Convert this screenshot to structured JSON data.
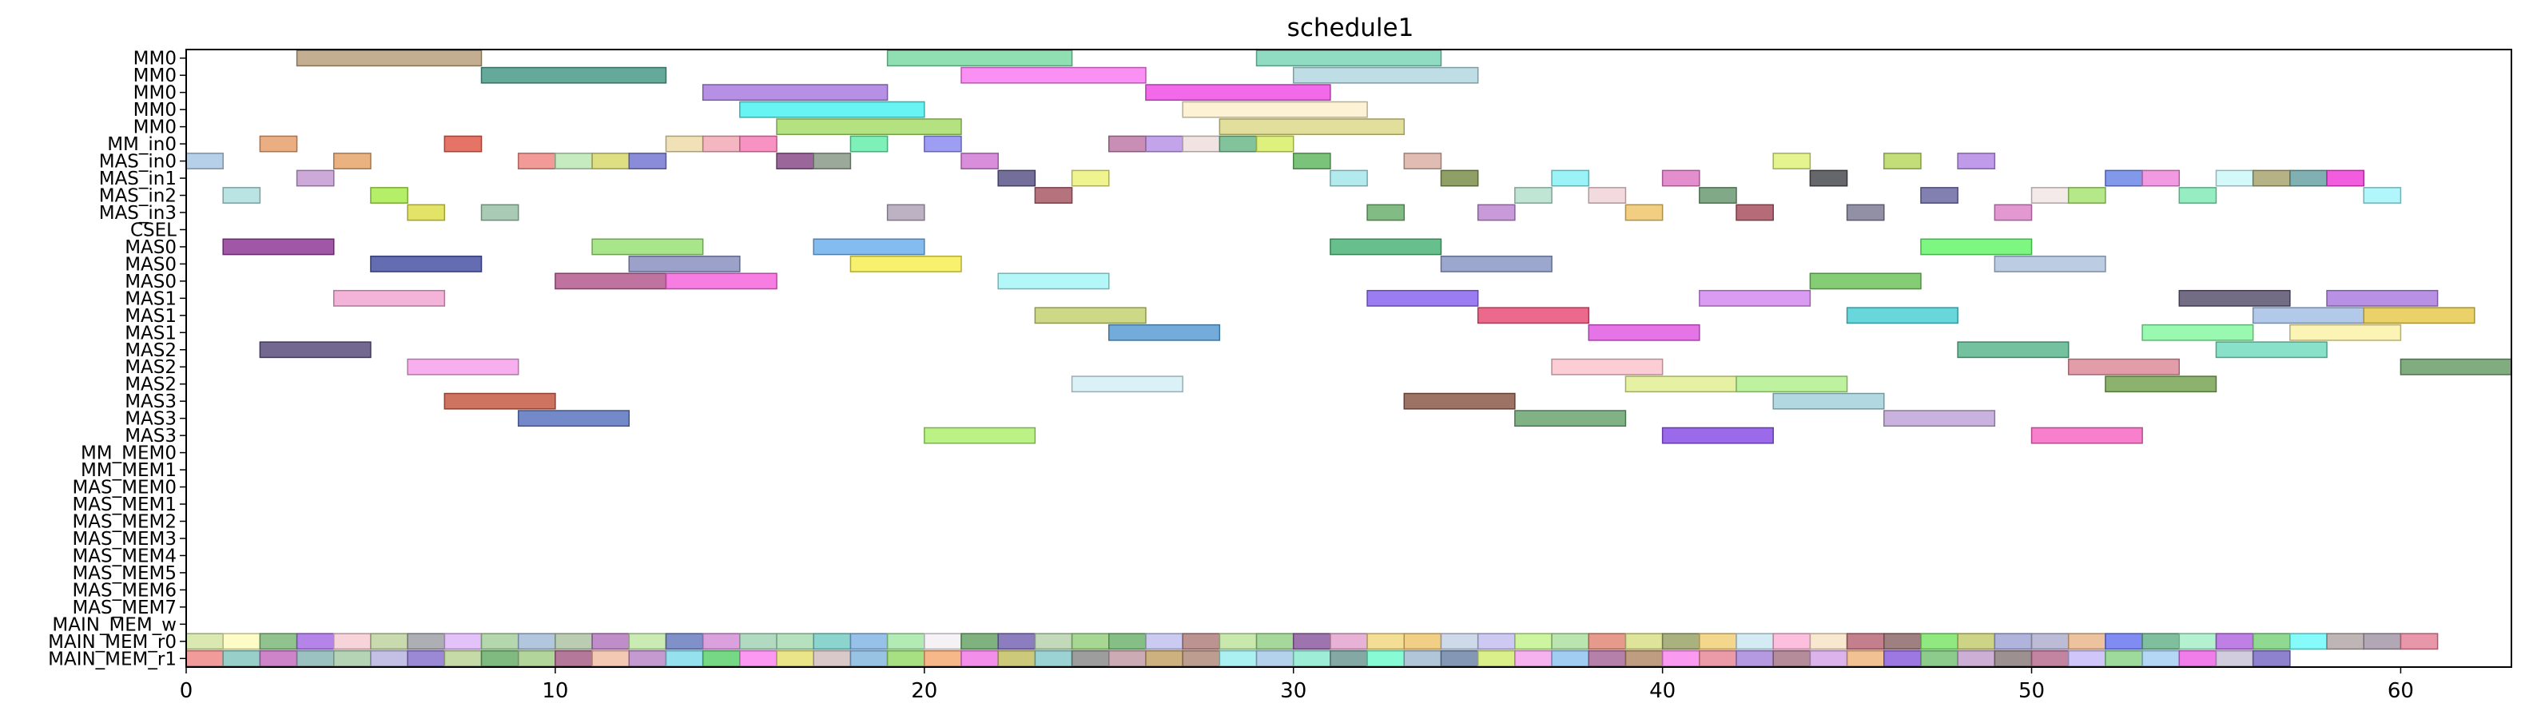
{
  "chart_data": {
    "type": "gantt",
    "title": "schedule1",
    "xlabel": "",
    "ylabel": "",
    "xlim": [
      0,
      63
    ],
    "xticks": [
      0,
      10,
      20,
      30,
      40,
      50,
      60
    ],
    "grid": false,
    "legend": "none",
    "rows": [
      "MM0",
      "MM0",
      "MM0",
      "MM0",
      "MM0",
      "MM_in0",
      "MAS_in0",
      "MAS_in1",
      "MAS_in2",
      "MAS_in3",
      "CSEL",
      "MAS0",
      "MAS0",
      "MAS0",
      "MAS1",
      "MAS1",
      "MAS1",
      "MAS2",
      "MAS2",
      "MAS2",
      "MAS3",
      "MAS3",
      "MAS3",
      "MM_MEM0",
      "MM_MEM1",
      "MAS_MEM0",
      "MAS_MEM1",
      "MAS_MEM2",
      "MAS_MEM3",
      "MAS_MEM4",
      "MAS_MEM5",
      "MAS_MEM6",
      "MAS_MEM7",
      "MAIN_MEM_w",
      "MAIN_MEM_r0",
      "MAIN_MEM_r1"
    ],
    "segments": [
      {
        "row": 0,
        "start": 3,
        "end": 8,
        "color": "#b8a07e"
      },
      {
        "row": 0,
        "start": 19,
        "end": 24,
        "color": "#7dd9a6"
      },
      {
        "row": 0,
        "start": 29,
        "end": 34,
        "color": "#7cd6b8"
      },
      {
        "row": 1,
        "start": 8,
        "end": 13,
        "color": "#4a9a8a"
      },
      {
        "row": 1,
        "start": 21,
        "end": 26,
        "color": "#f97cf2"
      },
      {
        "row": 1,
        "start": 30,
        "end": 35,
        "color": "#b4d7e0"
      },
      {
        "row": 2,
        "start": 14,
        "end": 19,
        "color": "#a97de0"
      },
      {
        "row": 2,
        "start": 26,
        "end": 31,
        "color": "#f04fe6"
      },
      {
        "row": 3,
        "start": 15,
        "end": 20,
        "color": "#4df2f0"
      },
      {
        "row": 3,
        "start": 27,
        "end": 32,
        "color": "#fdf1cc"
      },
      {
        "row": 4,
        "start": 16,
        "end": 21,
        "color": "#a7dd6a"
      },
      {
        "row": 4,
        "start": 28,
        "end": 33,
        "color": "#dcd98a"
      },
      {
        "row": 5,
        "start": 2,
        "end": 3,
        "color": "#e8a06c"
      },
      {
        "row": 5,
        "start": 7,
        "end": 8,
        "color": "#e05c4c"
      },
      {
        "row": 5,
        "start": 13,
        "end": 14,
        "color": "#eedcaa"
      },
      {
        "row": 5,
        "start": 14,
        "end": 15,
        "color": "#f2a9b6"
      },
      {
        "row": 5,
        "start": 15,
        "end": 16,
        "color": "#f77fb8"
      },
      {
        "row": 5,
        "start": 18,
        "end": 19,
        "color": "#66eeaa"
      },
      {
        "row": 5,
        "start": 20,
        "end": 21,
        "color": "#8d8cf2"
      },
      {
        "row": 5,
        "start": 25,
        "end": 26,
        "color": "#c07aa8"
      },
      {
        "row": 5,
        "start": 26,
        "end": 27,
        "color": "#b994e8"
      },
      {
        "row": 5,
        "start": 27,
        "end": 28,
        "color": "#efdedd"
      },
      {
        "row": 5,
        "start": 28,
        "end": 29,
        "color": "#6cb98a"
      },
      {
        "row": 5,
        "start": 29,
        "end": 30,
        "color": "#d8ee66"
      },
      {
        "row": 6,
        "start": 0,
        "end": 1,
        "color": "#a9c8e6"
      },
      {
        "row": 6,
        "start": 4,
        "end": 5,
        "color": "#e6a46a"
      },
      {
        "row": 6,
        "start": 9,
        "end": 10,
        "color": "#f08a84"
      },
      {
        "row": 6,
        "start": 10,
        "end": 11,
        "color": "#bde8b6"
      },
      {
        "row": 6,
        "start": 11,
        "end": 12,
        "color": "#d8d86c"
      },
      {
        "row": 6,
        "start": 12,
        "end": 13,
        "color": "#7678d2"
      },
      {
        "row": 6,
        "start": 16,
        "end": 17,
        "color": "#8a4c8a"
      },
      {
        "row": 6,
        "start": 17,
        "end": 18,
        "color": "#8a9a8a"
      },
      {
        "row": 6,
        "start": 21,
        "end": 22,
        "color": "#d27ad6"
      },
      {
        "row": 6,
        "start": 30,
        "end": 31,
        "color": "#64b864"
      },
      {
        "row": 6,
        "start": 33,
        "end": 34,
        "color": "#dcb0a4"
      },
      {
        "row": 6,
        "start": 43,
        "end": 44,
        "color": "#e0f27a"
      },
      {
        "row": 6,
        "start": 46,
        "end": 47,
        "color": "#b8d860"
      },
      {
        "row": 6,
        "start": 48,
        "end": 49,
        "color": "#b48ae6"
      },
      {
        "row": 7,
        "start": 3,
        "end": 4,
        "color": "#c49ad2"
      },
      {
        "row": 7,
        "start": 22,
        "end": 23,
        "color": "#5a5688"
      },
      {
        "row": 7,
        "start": 24,
        "end": 25,
        "color": "#ecf27a"
      },
      {
        "row": 7,
        "start": 31,
        "end": 32,
        "color": "#a6e6ea"
      },
      {
        "row": 7,
        "start": 34,
        "end": 35,
        "color": "#7c8e4a"
      },
      {
        "row": 7,
        "start": 37,
        "end": 38,
        "color": "#88f2f6"
      },
      {
        "row": 7,
        "start": 40,
        "end": 41,
        "color": "#e07ac6"
      },
      {
        "row": 7,
        "start": 44,
        "end": 45,
        "color": "#4a4c50"
      },
      {
        "row": 7,
        "start": 52,
        "end": 53,
        "color": "#6c86e6"
      },
      {
        "row": 7,
        "start": 53,
        "end": 54,
        "color": "#ee88dc"
      },
      {
        "row": 7,
        "start": 55,
        "end": 56,
        "color": "#ccf8fa"
      },
      {
        "row": 7,
        "start": 56,
        "end": 57,
        "color": "#a8a470"
      },
      {
        "row": 7,
        "start": 57,
        "end": 58,
        "color": "#6aa2a4"
      },
      {
        "row": 7,
        "start": 58,
        "end": 59,
        "color": "#f040d8"
      },
      {
        "row": 8,
        "start": 1,
        "end": 2,
        "color": "#aedede"
      },
      {
        "row": 8,
        "start": 5,
        "end": 6,
        "color": "#a8ec4c"
      },
      {
        "row": 8,
        "start": 23,
        "end": 24,
        "color": "#a85a66"
      },
      {
        "row": 8,
        "start": 36,
        "end": 37,
        "color": "#b6e0cc"
      },
      {
        "row": 8,
        "start": 38,
        "end": 39,
        "color": "#f0d4d8"
      },
      {
        "row": 8,
        "start": 41,
        "end": 42,
        "color": "#6c9a72"
      },
      {
        "row": 8,
        "start": 47,
        "end": 48,
        "color": "#6c6aa2"
      },
      {
        "row": 8,
        "start": 50,
        "end": 51,
        "color": "#f2e6e6"
      },
      {
        "row": 8,
        "start": 51,
        "end": 52,
        "color": "#a8e474"
      },
      {
        "row": 8,
        "start": 54,
        "end": 55,
        "color": "#84eab6"
      },
      {
        "row": 8,
        "start": 59,
        "end": 60,
        "color": "#a2f4fa"
      },
      {
        "row": 9,
        "start": 6,
        "end": 7,
        "color": "#dede4c"
      },
      {
        "row": 9,
        "start": 8,
        "end": 9,
        "color": "#9ac2a8"
      },
      {
        "row": 9,
        "start": 19,
        "end": 20,
        "color": "#b0a4b8"
      },
      {
        "row": 9,
        "start": 32,
        "end": 33,
        "color": "#6cb06e"
      },
      {
        "row": 9,
        "start": 35,
        "end": 36,
        "color": "#be88d2"
      },
      {
        "row": 9,
        "start": 39,
        "end": 40,
        "color": "#f0c66c"
      },
      {
        "row": 9,
        "start": 42,
        "end": 43,
        "color": "#a85260"
      },
      {
        "row": 9,
        "start": 45,
        "end": 46,
        "color": "#7e7c94"
      },
      {
        "row": 9,
        "start": 49,
        "end": 50,
        "color": "#de86ca"
      },
      {
        "row": 11,
        "start": 1,
        "end": 4,
        "color": "#8e3a96"
      },
      {
        "row": 11,
        "start": 11,
        "end": 14,
        "color": "#9ae076"
      },
      {
        "row": 11,
        "start": 17,
        "end": 20,
        "color": "#70b0ec"
      },
      {
        "row": 11,
        "start": 31,
        "end": 34,
        "color": "#4cb478"
      },
      {
        "row": 11,
        "start": 47,
        "end": 50,
        "color": "#66f46c"
      },
      {
        "row": 12,
        "start": 5,
        "end": 8,
        "color": "#4a54a4"
      },
      {
        "row": 12,
        "start": 12,
        "end": 15,
        "color": "#8a90c0"
      },
      {
        "row": 12,
        "start": 18,
        "end": 21,
        "color": "#f6ee54"
      },
      {
        "row": 12,
        "start": 34,
        "end": 37,
        "color": "#8a98c4"
      },
      {
        "row": 12,
        "start": 49,
        "end": 52,
        "color": "#b0c4de"
      },
      {
        "row": 13,
        "start": 10,
        "end": 13,
        "color": "#b45a8e"
      },
      {
        "row": 13,
        "start": 13,
        "end": 16,
        "color": "#f766de"
      },
      {
        "row": 13,
        "start": 22,
        "end": 25,
        "color": "#a6f6f8"
      },
      {
        "row": 13,
        "start": 44,
        "end": 47,
        "color": "#70c45c"
      },
      {
        "row": 14,
        "start": 4,
        "end": 7,
        "color": "#f2a6d2"
      },
      {
        "row": 14,
        "start": 32,
        "end": 35,
        "color": "#8a66ee"
      },
      {
        "row": 14,
        "start": 41,
        "end": 44,
        "color": "#d48af0"
      },
      {
        "row": 14,
        "start": 54,
        "end": 57,
        "color": "#5a5270"
      },
      {
        "row": 14,
        "start": 58,
        "end": 61,
        "color": "#ac7ee0"
      },
      {
        "row": 15,
        "start": 23,
        "end": 26,
        "color": "#c4d272"
      },
      {
        "row": 15,
        "start": 35,
        "end": 38,
        "color": "#e85078"
      },
      {
        "row": 15,
        "start": 45,
        "end": 48,
        "color": "#4cd0d6"
      },
      {
        "row": 15,
        "start": 56,
        "end": 59,
        "color": "#a4c0e6"
      },
      {
        "row": 15,
        "start": 59,
        "end": 62,
        "color": "#e6ca4e"
      },
      {
        "row": 16,
        "start": 25,
        "end": 28,
        "color": "#5a9ed4"
      },
      {
        "row": 16,
        "start": 38,
        "end": 41,
        "color": "#e05ce2"
      },
      {
        "row": 16,
        "start": 53,
        "end": 56,
        "color": "#88f8a2"
      },
      {
        "row": 16,
        "start": 57,
        "end": 60,
        "color": "#fcf2a8"
      },
      {
        "row": 17,
        "start": 2,
        "end": 5,
        "color": "#5a4e7c"
      },
      {
        "row": 17,
        "start": 48,
        "end": 51,
        "color": "#5ab68e"
      },
      {
        "row": 17,
        "start": 55,
        "end": 58,
        "color": "#74dcc0"
      },
      {
        "row": 18,
        "start": 6,
        "end": 9,
        "color": "#f6a2ea"
      },
      {
        "row": 18,
        "start": 37,
        "end": 40,
        "color": "#fcc4cc"
      },
      {
        "row": 18,
        "start": 51,
        "end": 54,
        "color": "#de8c9a"
      },
      {
        "row": 18,
        "start": 60,
        "end": 63,
        "color": "#6a9e6a"
      },
      {
        "row": 19,
        "start": 24,
        "end": 27,
        "color": "#d4f0f6"
      },
      {
        "row": 19,
        "start": 39,
        "end": 42,
        "color": "#e2ee94"
      },
      {
        "row": 19,
        "start": 42,
        "end": 45,
        "color": "#b4f08e"
      },
      {
        "row": 19,
        "start": 52,
        "end": 55,
        "color": "#78a454"
      },
      {
        "row": 20,
        "start": 7,
        "end": 10,
        "color": "#c65a44"
      },
      {
        "row": 20,
        "start": 33,
        "end": 36,
        "color": "#8c5a4a"
      },
      {
        "row": 20,
        "start": 43,
        "end": 46,
        "color": "#a4d2dc"
      },
      {
        "row": 21,
        "start": 9,
        "end": 12,
        "color": "#5a74c0"
      },
      {
        "row": 21,
        "start": 36,
        "end": 39,
        "color": "#6aa470"
      },
      {
        "row": 21,
        "start": 46,
        "end": 49,
        "color": "#c0a6d8"
      },
      {
        "row": 22,
        "start": 20,
        "end": 23,
        "color": "#aef070"
      },
      {
        "row": 22,
        "start": 40,
        "end": 43,
        "color": "#8a50e8"
      },
      {
        "row": 22,
        "start": 50,
        "end": 53,
        "color": "#f768c2"
      }
    ],
    "main_mem_rows": [
      {
        "row": 34,
        "colors": [
          "#d4e4a4",
          "#fefcbc",
          "#7cb87a",
          "#a86ee4",
          "#f6ccd4",
          "#c0d4a0",
          "#a0a0a8",
          "#deb6f8",
          "#a8d0a0",
          "#a4bcd8",
          "#aec4a4",
          "#b47ac0",
          "#c2e8a8",
          "#6a7cbe",
          "#d490d8",
          "#a4d4b6",
          "#a8dcb4",
          "#78ccc6",
          "#86b6e6",
          "#a6e8a8",
          "#f2f0f2",
          "#68a468",
          "#7866b4",
          "#b8d4ae",
          "#98d080",
          "#70b470",
          "#c2c2f0",
          "#b0807e",
          "#c0e4a0",
          "#96d08a",
          "#8c5ca0",
          "#e4a4d0",
          "#f2d884",
          "#eec870",
          "#c6d2e6",
          "#c4c0f0",
          "#c4f28e",
          "#aee0a0",
          "#e08878",
          "#d8e088",
          "#9aa468",
          "#f0d078",
          "#cce8f2",
          "#fcb4d8",
          "#f8e4c8",
          "#b86878",
          "#8c6a68",
          "#7ce46a",
          "#c6cc70",
          "#a2a6d6",
          "#b0b0d0",
          "#eab88c",
          "#6a78f0",
          "#6ab48c",
          "#a6eec8",
          "#b46ae0",
          "#7cd27c",
          "#70fafa",
          "#b4a8a8",
          "#a498a8",
          "#e4849a"
        ]
      },
      {
        "row": 35,
        "colors": [
          "#f08a8a",
          "#86c8c0",
          "#c46ec0",
          "#8ab6b6",
          "#a8cca8",
          "#b8b4e0",
          "#8a74ce",
          "#bcd498",
          "#6aae6a",
          "#a4ce8a",
          "#a66088",
          "#f2c0a6",
          "#ba88c8",
          "#82dcea",
          "#5ed070",
          "#fc86f0",
          "#e8e074",
          "#d4c0c0",
          "#86b8de",
          "#96da6c",
          "#f4aa74",
          "#f27ae8",
          "#c4c064",
          "#8acbcc",
          "#8c8c8c",
          "#c49ca8",
          "#c4a46a",
          "#b08c7c",
          "#9ceeee",
          "#a8caea",
          "#8cead0",
          "#6e9a94",
          "#72fccc",
          "#a4bcd4",
          "#6e86a8",
          "#d4ec76",
          "#f4a4ec",
          "#92c4f0",
          "#a86a9a",
          "#b48c6a",
          "#fa88ee",
          "#e88898",
          "#a888dc",
          "#a87888",
          "#d6a6e8",
          "#eeb680",
          "#8c60de",
          "#78c278",
          "#c4a0cc",
          "#8c7c7c",
          "#b86e92",
          "#c8bcf8",
          "#8ed48c",
          "#a8d0f4",
          "#ee66e6",
          "#cac4d8",
          "#7a6cc6"
        ]
      }
    ]
  }
}
